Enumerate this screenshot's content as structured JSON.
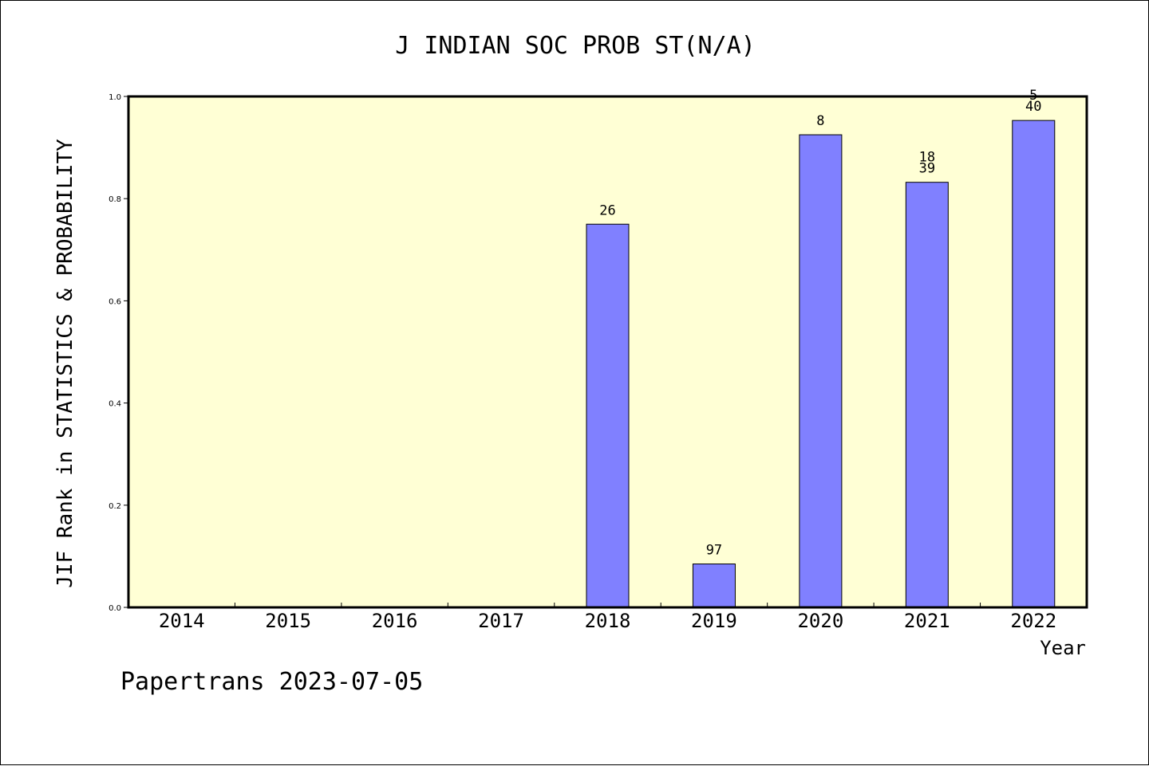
{
  "chart_data": {
    "type": "bar",
    "title": "J INDIAN SOC PROB ST(N/A)",
    "xlabel": "Year",
    "ylabel": "JIF Rank in STATISTICS & PROBABILITY",
    "footer": "Papertrans 2023-07-05",
    "categories": [
      "2014",
      "2015",
      "2016",
      "2017",
      "2018",
      "2019",
      "2020",
      "2021",
      "2022"
    ],
    "values": [
      0,
      0,
      0,
      0,
      0.75,
      0.085,
      0.925,
      0.832,
      0.953
    ],
    "bar_labels": [
      [],
      [],
      [],
      [],
      [
        "26"
      ],
      [
        "97"
      ],
      [
        "8"
      ],
      [
        "18",
        "39"
      ],
      [
        "5",
        "40"
      ]
    ],
    "ylim": [
      0,
      1.0
    ],
    "yticks": [
      "0.0",
      "0.2",
      "0.4",
      "0.6",
      "0.8",
      "1.0"
    ],
    "grid": false,
    "colors": {
      "plot_background": "#ffffd5",
      "bar_fill": "#8080ff",
      "bar_stroke": "#000000"
    }
  }
}
